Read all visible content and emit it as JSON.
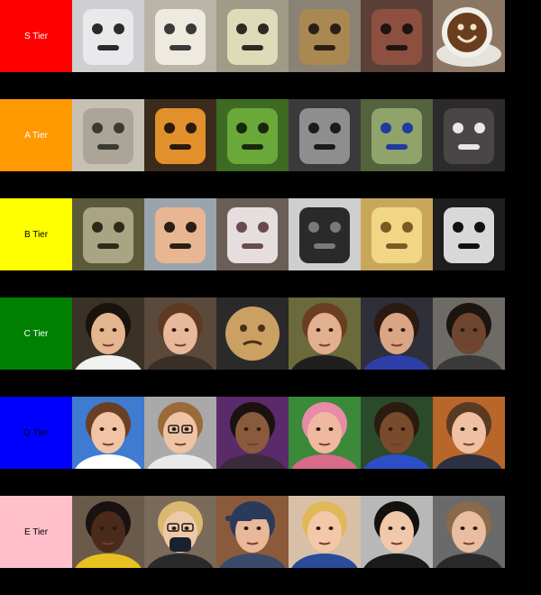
{
  "tiers": [
    {
      "label": "S Tier",
      "color": "#ff0000",
      "label_text_color": "#ffffff",
      "items": [
        {
          "name": "heater-face",
          "bg": "#cfcfd2",
          "face": "#e9e9ec",
          "fg": "#2a2a2a",
          "kind": "object"
        },
        {
          "name": "jugs-face",
          "bg": "#b9b4a8",
          "face": "#eeeae0",
          "fg": "#3a3a3a",
          "kind": "object"
        },
        {
          "name": "pale-blob-face",
          "bg": "#9e9c86",
          "face": "#dedbb9",
          "fg": "#2b2b22",
          "kind": "object"
        },
        {
          "name": "banjo-face",
          "bg": "#8a8275",
          "face": "#a98852",
          "fg": "#2a1f14",
          "kind": "object"
        },
        {
          "name": "rusty-box-face",
          "bg": "#5b4038",
          "face": "#8d4f3f",
          "fg": "#201412",
          "kind": "object"
        },
        {
          "name": "coffee-cup-face",
          "bg": "#8c7664",
          "face": "#f1efea",
          "fg": "#3a2210",
          "kind": "cup"
        }
      ]
    },
    {
      "label": "A Tier",
      "color": "#ff9900",
      "label_text_color": "#ffffff",
      "items": [
        {
          "name": "plant-stem-face",
          "bg": "#c6c1b3",
          "face": "#aaa596",
          "fg": "#3a3a33",
          "kind": "object"
        },
        {
          "name": "orange-box-face",
          "bg": "#3a2b1c",
          "face": "#e2902c",
          "fg": "#2a1a0d",
          "kind": "object"
        },
        {
          "name": "green-pepper-face",
          "bg": "#3e6a22",
          "face": "#6aa83a",
          "fg": "#16280b",
          "kind": "object"
        },
        {
          "name": "car-seat-face",
          "bg": "#3a3a3a",
          "face": "#8e8e8e",
          "fg": "#1a1a1a",
          "kind": "object"
        },
        {
          "name": "mop-face",
          "bg": "#54623e",
          "face": "#8fa36a",
          "fg": "#1f3aa0",
          "kind": "object"
        },
        {
          "name": "grille-face",
          "bg": "#2c2a2a",
          "face": "#4a4646",
          "fg": "#e8e8e8",
          "kind": "object"
        }
      ]
    },
    {
      "label": "B Tier",
      "color": "#ffff00",
      "label_text_color": "#000000",
      "items": [
        {
          "name": "tree-bark-face",
          "bg": "#5a5a3a",
          "face": "#a9a584",
          "fg": "#2c2a18",
          "kind": "object"
        },
        {
          "name": "cartoon-head-face",
          "bg": "#9aa4ad",
          "face": "#e8b693",
          "fg": "#2a1e16",
          "kind": "object"
        },
        {
          "name": "onion-face",
          "bg": "#6b5e57",
          "face": "#e6dede",
          "fg": "#6a4a52",
          "kind": "object"
        },
        {
          "name": "sculpture-face",
          "bg": "#cfcfcf",
          "face": "#2a2a2a",
          "fg": "#7a7a7a",
          "kind": "object"
        },
        {
          "name": "pasta-face",
          "bg": "#c9a75a",
          "face": "#f1d685",
          "fg": "#7a5a22",
          "kind": "object"
        },
        {
          "name": "bw-robot-face",
          "bg": "#1e1e1e",
          "face": "#d8d8d8",
          "fg": "#101010",
          "kind": "object"
        }
      ]
    },
    {
      "label": "C Tier",
      "color": "#008000",
      "label_text_color": "#ffffff",
      "items": [
        {
          "name": "portrait-c1",
          "bg": "#3a3226",
          "face": "#e3b690",
          "hair": "#1a120c",
          "shirt": "#f1f1f1",
          "kind": "person"
        },
        {
          "name": "portrait-c2",
          "bg": "#5b4a3c",
          "face": "#e7b89a",
          "hair": "#5e3a22",
          "shirt": "#3a2e28",
          "kind": "person"
        },
        {
          "name": "cookie-face",
          "bg": "#2a2a2a",
          "face": "#caa063",
          "fg": "#4a2e16",
          "kind": "cookie"
        },
        {
          "name": "portrait-c4",
          "bg": "#6a6a3a",
          "face": "#e2b08e",
          "hair": "#6b3e22",
          "shirt": "#1f1f1f",
          "kind": "person"
        },
        {
          "name": "portrait-c5",
          "bg": "#2f2f3a",
          "face": "#d9a583",
          "hair": "#2a1a10",
          "shirt": "#2c3fa8",
          "kind": "person"
        },
        {
          "name": "portrait-c6",
          "bg": "#6e6a66",
          "face": "#6e4630",
          "hair": "#1c1410",
          "shirt": "#3a3a3a",
          "kind": "person"
        }
      ]
    },
    {
      "label": "D Tier",
      "color": "#0000ff",
      "label_text_color": "#000000",
      "items": [
        {
          "name": "portrait-d1",
          "bg": "#3f7bd0",
          "face": "#f0c4a4",
          "hair": "#6a4024",
          "shirt": "#ffffff",
          "kind": "person"
        },
        {
          "name": "portrait-d2",
          "bg": "#a9a9a9",
          "face": "#efc4a4",
          "hair": "#9a6a3a",
          "shirt": "#e9e9e9",
          "kind": "person-glasses"
        },
        {
          "name": "portrait-d3",
          "bg": "#5a2a6a",
          "face": "#8a5a3c",
          "hair": "#1a1210",
          "shirt": "#3a2a3a",
          "kind": "person"
        },
        {
          "name": "portrait-d4",
          "bg": "#3a8a3a",
          "face": "#f0b8a0",
          "hair": "#e98aa8",
          "shirt": "#d86a8a",
          "kind": "person"
        },
        {
          "name": "portrait-d5",
          "bg": "#2a4a2a",
          "face": "#7a4a2c",
          "hair": "#2a1a10",
          "shirt": "#2c4fc8",
          "kind": "person"
        },
        {
          "name": "portrait-d6",
          "bg": "#b8662a",
          "face": "#efc0a2",
          "hair": "#5a3a22",
          "shirt": "#2c3040",
          "kind": "person"
        }
      ]
    },
    {
      "label": "E Tier",
      "color": "#ffc0cb",
      "label_text_color": "#000000",
      "items": [
        {
          "name": "portrait-e1",
          "bg": "#6a5a4a",
          "face": "#4a2a1a",
          "hair": "#1a1210",
          "shirt": "#e8c020",
          "kind": "person"
        },
        {
          "name": "portrait-e2",
          "bg": "#7a6a5a",
          "face": "#efc8a8",
          "hair": "#d9b870",
          "shirt": "#2a2a2a",
          "kind": "person-mask"
        },
        {
          "name": "portrait-e3",
          "bg": "#8a5a3a",
          "face": "#e9b898",
          "hair": "#2a3a5a",
          "shirt": "#3a4a6a",
          "kind": "person-cap"
        },
        {
          "name": "portrait-e4",
          "bg": "#d8c0a8",
          "face": "#f2c8a8",
          "hair": "#e0b858",
          "shirt": "#2a4a9a",
          "kind": "person"
        },
        {
          "name": "portrait-e5",
          "bg": "#b8b8b8",
          "face": "#f0c8aa",
          "hair": "#14100e",
          "shirt": "#1a1a1a",
          "kind": "person"
        },
        {
          "name": "portrait-e6",
          "bg": "#6a6a6a",
          "face": "#e9bea0",
          "hair": "#8a6a4a",
          "shirt": "#2a2a2a",
          "kind": "person"
        }
      ]
    }
  ]
}
